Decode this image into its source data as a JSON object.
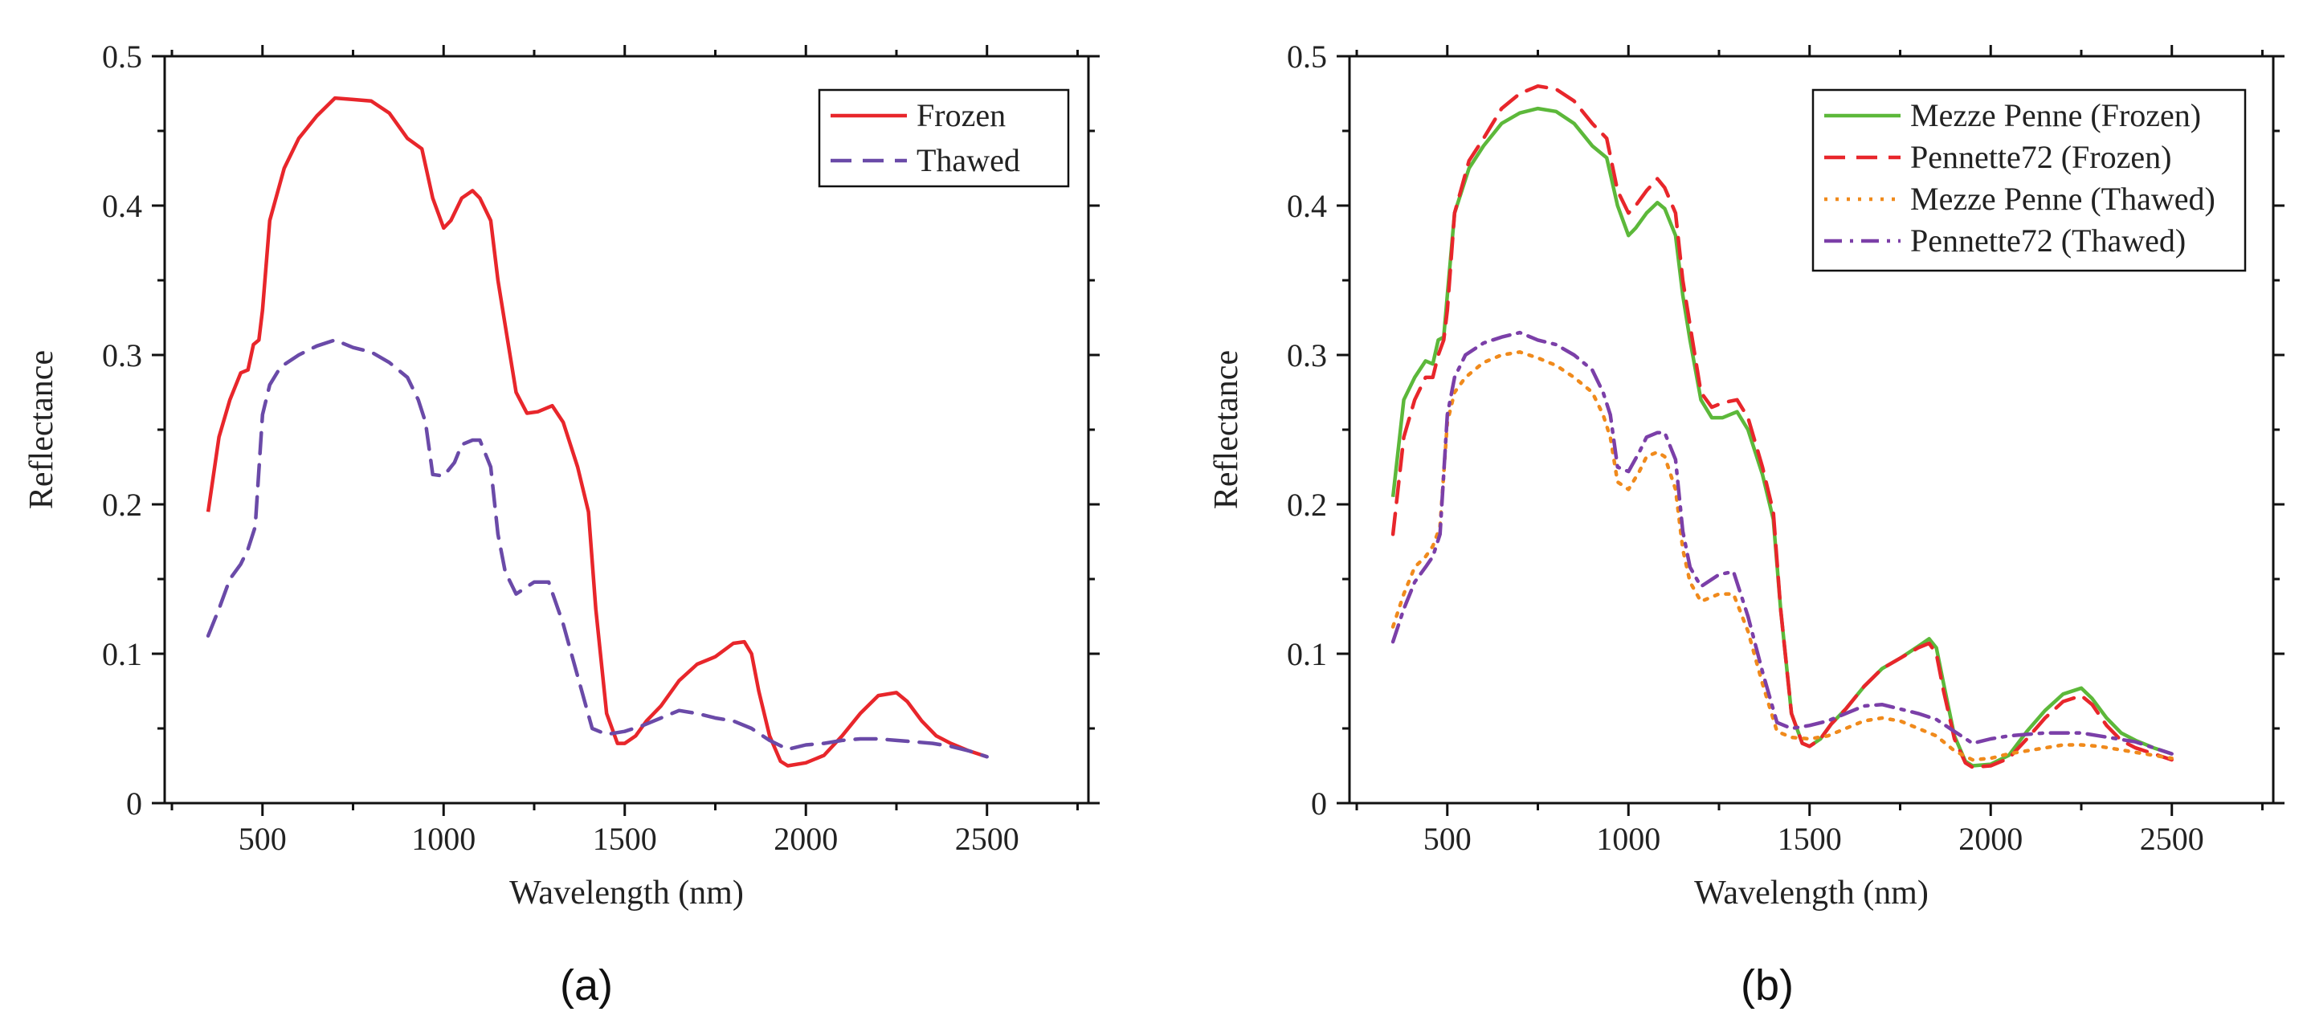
{
  "chart_data": [
    {
      "type": "line",
      "panel_label": "(a)",
      "title": "",
      "xlabel": "Wavelength (nm)",
      "ylabel": "Reflectance",
      "xlim": [
        230,
        2780
      ],
      "ylim": [
        0,
        0.5
      ],
      "xticks": [
        500,
        1000,
        1500,
        2000,
        2500
      ],
      "yticks": [
        0,
        0.1,
        0.2,
        0.3,
        0.4,
        0.5
      ],
      "ytick_labels": [
        "0",
        "0.1",
        "0.2",
        "0.3",
        "0.4",
        "0.5"
      ],
      "legend_position": "top-right",
      "series": [
        {
          "name": "Frozen",
          "color": "#e8262b",
          "dash": "solid",
          "x": [
            350,
            380,
            410,
            440,
            460,
            475,
            490,
            500,
            520,
            560,
            600,
            650,
            700,
            750,
            800,
            850,
            900,
            940,
            970,
            1000,
            1020,
            1050,
            1080,
            1100,
            1130,
            1150,
            1170,
            1200,
            1230,
            1260,
            1300,
            1330,
            1370,
            1400,
            1420,
            1450,
            1480,
            1500,
            1530,
            1560,
            1600,
            1650,
            1700,
            1750,
            1800,
            1830,
            1850,
            1870,
            1900,
            1930,
            1950,
            2000,
            2050,
            2100,
            2150,
            2200,
            2250,
            2280,
            2320,
            2360,
            2400,
            2450,
            2500
          ],
          "y": [
            0.195,
            0.245,
            0.27,
            0.288,
            0.29,
            0.307,
            0.31,
            0.33,
            0.39,
            0.425,
            0.445,
            0.46,
            0.472,
            0.471,
            0.47,
            0.462,
            0.445,
            0.438,
            0.405,
            0.385,
            0.39,
            0.405,
            0.41,
            0.405,
            0.39,
            0.35,
            0.32,
            0.275,
            0.261,
            0.262,
            0.266,
            0.255,
            0.225,
            0.195,
            0.13,
            0.06,
            0.04,
            0.04,
            0.045,
            0.055,
            0.065,
            0.082,
            0.093,
            0.098,
            0.107,
            0.108,
            0.1,
            0.075,
            0.045,
            0.028,
            0.025,
            0.027,
            0.032,
            0.045,
            0.06,
            0.072,
            0.074,
            0.068,
            0.055,
            0.045,
            0.04,
            0.035,
            0.031
          ]
        },
        {
          "name": "Thawed",
          "color": "#6a4aa8",
          "dash": "dashed",
          "x": [
            350,
            380,
            410,
            440,
            460,
            480,
            500,
            520,
            550,
            600,
            650,
            700,
            750,
            800,
            850,
            900,
            930,
            950,
            970,
            1000,
            1030,
            1050,
            1080,
            1100,
            1130,
            1150,
            1170,
            1200,
            1250,
            1290,
            1330,
            1370,
            1410,
            1450,
            1500,
            1550,
            1600,
            1650,
            1700,
            1750,
            1800,
            1850,
            1900,
            1950,
            2000,
            2050,
            2100,
            2150,
            2200,
            2250,
            2300,
            2350,
            2400,
            2450,
            2500
          ],
          "y": [
            0.112,
            0.13,
            0.15,
            0.16,
            0.17,
            0.185,
            0.26,
            0.28,
            0.292,
            0.3,
            0.306,
            0.31,
            0.305,
            0.302,
            0.295,
            0.285,
            0.27,
            0.255,
            0.22,
            0.219,
            0.228,
            0.24,
            0.243,
            0.243,
            0.225,
            0.18,
            0.155,
            0.14,
            0.148,
            0.148,
            0.12,
            0.085,
            0.05,
            0.046,
            0.048,
            0.052,
            0.057,
            0.062,
            0.06,
            0.057,
            0.055,
            0.05,
            0.042,
            0.036,
            0.039,
            0.04,
            0.042,
            0.043,
            0.043,
            0.042,
            0.041,
            0.04,
            0.038,
            0.035,
            0.031
          ]
        }
      ]
    },
    {
      "type": "line",
      "panel_label": "(b)",
      "title": "",
      "xlabel": "Wavelength (nm)",
      "ylabel": "Reflectance",
      "xlim": [
        230,
        2780
      ],
      "ylim": [
        0,
        0.5
      ],
      "xticks": [
        500,
        1000,
        1500,
        2000,
        2500
      ],
      "yticks": [
        0,
        0.1,
        0.2,
        0.3,
        0.4,
        0.5
      ],
      "ytick_labels": [
        "0",
        "0.1",
        "0.2",
        "0.3",
        "0.4",
        "0.5"
      ],
      "legend_position": "top-right",
      "series": [
        {
          "name": "Mezze Penne (Frozen)",
          "color": "#5cb83a",
          "dash": "solid",
          "x": [
            350,
            380,
            410,
            440,
            460,
            475,
            490,
            500,
            520,
            560,
            600,
            650,
            700,
            750,
            800,
            850,
            900,
            940,
            970,
            1000,
            1020,
            1050,
            1080,
            1100,
            1130,
            1150,
            1170,
            1200,
            1230,
            1260,
            1300,
            1330,
            1370,
            1400,
            1420,
            1450,
            1480,
            1500,
            1530,
            1560,
            1600,
            1650,
            1700,
            1750,
            1800,
            1830,
            1850,
            1870,
            1900,
            1930,
            1950,
            2000,
            2050,
            2100,
            2150,
            2200,
            2250,
            2280,
            2320,
            2360,
            2400,
            2450,
            2500
          ],
          "y": [
            0.205,
            0.27,
            0.285,
            0.296,
            0.294,
            0.31,
            0.312,
            0.34,
            0.395,
            0.425,
            0.44,
            0.455,
            0.462,
            0.465,
            0.463,
            0.455,
            0.44,
            0.432,
            0.4,
            0.38,
            0.385,
            0.395,
            0.402,
            0.398,
            0.38,
            0.34,
            0.31,
            0.27,
            0.258,
            0.258,
            0.262,
            0.25,
            0.22,
            0.19,
            0.13,
            0.06,
            0.04,
            0.038,
            0.043,
            0.053,
            0.063,
            0.078,
            0.09,
            0.097,
            0.105,
            0.11,
            0.104,
            0.08,
            0.045,
            0.028,
            0.025,
            0.026,
            0.032,
            0.048,
            0.062,
            0.073,
            0.077,
            0.07,
            0.057,
            0.047,
            0.042,
            0.037,
            0.033
          ]
        },
        {
          "name": "Pennette72 (Frozen)",
          "color": "#e8262b",
          "dash": "dashed",
          "x": [
            350,
            380,
            410,
            440,
            460,
            475,
            490,
            500,
            520,
            560,
            600,
            650,
            700,
            750,
            800,
            850,
            900,
            940,
            970,
            1000,
            1020,
            1050,
            1080,
            1100,
            1130,
            1150,
            1170,
            1200,
            1230,
            1260,
            1300,
            1330,
            1370,
            1400,
            1420,
            1450,
            1480,
            1500,
            1530,
            1560,
            1600,
            1650,
            1700,
            1750,
            1800,
            1830,
            1850,
            1870,
            1900,
            1930,
            1950,
            2000,
            2050,
            2100,
            2150,
            2200,
            2250,
            2280,
            2320,
            2360,
            2400,
            2450,
            2500
          ],
          "y": [
            0.18,
            0.245,
            0.27,
            0.285,
            0.285,
            0.3,
            0.31,
            0.33,
            0.395,
            0.43,
            0.445,
            0.465,
            0.475,
            0.48,
            0.478,
            0.47,
            0.455,
            0.445,
            0.41,
            0.395,
            0.4,
            0.41,
            0.418,
            0.412,
            0.395,
            0.35,
            0.32,
            0.275,
            0.265,
            0.268,
            0.27,
            0.258,
            0.225,
            0.195,
            0.13,
            0.06,
            0.04,
            0.038,
            0.043,
            0.053,
            0.063,
            0.078,
            0.09,
            0.097,
            0.104,
            0.107,
            0.1,
            0.075,
            0.043,
            0.027,
            0.024,
            0.025,
            0.03,
            0.043,
            0.057,
            0.068,
            0.072,
            0.066,
            0.052,
            0.042,
            0.037,
            0.033,
            0.029
          ]
        },
        {
          "name": "Mezze Penne (Thawed)",
          "color": "#f08a1c",
          "dash": "dotted",
          "x": [
            350,
            380,
            410,
            440,
            460,
            480,
            500,
            520,
            550,
            600,
            650,
            700,
            750,
            800,
            850,
            900,
            930,
            950,
            970,
            1000,
            1030,
            1050,
            1080,
            1100,
            1130,
            1150,
            1170,
            1200,
            1250,
            1290,
            1330,
            1370,
            1410,
            1450,
            1500,
            1550,
            1600,
            1650,
            1700,
            1750,
            1800,
            1850,
            1900,
            1950,
            2000,
            2050,
            2100,
            2150,
            2200,
            2250,
            2300,
            2350,
            2400,
            2450,
            2500
          ],
          "y": [
            0.118,
            0.14,
            0.158,
            0.165,
            0.172,
            0.185,
            0.255,
            0.275,
            0.285,
            0.295,
            0.3,
            0.302,
            0.298,
            0.293,
            0.285,
            0.275,
            0.26,
            0.245,
            0.215,
            0.21,
            0.222,
            0.232,
            0.235,
            0.232,
            0.21,
            0.17,
            0.148,
            0.135,
            0.14,
            0.14,
            0.115,
            0.08,
            0.048,
            0.044,
            0.043,
            0.045,
            0.05,
            0.055,
            0.057,
            0.055,
            0.05,
            0.045,
            0.035,
            0.029,
            0.03,
            0.033,
            0.035,
            0.037,
            0.039,
            0.039,
            0.038,
            0.036,
            0.034,
            0.032,
            0.03
          ]
        },
        {
          "name": "Pennette72 (Thawed)",
          "color": "#7b3fa8",
          "dash": "dashdot",
          "x": [
            350,
            380,
            410,
            440,
            460,
            480,
            500,
            520,
            550,
            600,
            650,
            700,
            750,
            800,
            850,
            900,
            930,
            950,
            970,
            1000,
            1030,
            1050,
            1080,
            1100,
            1130,
            1150,
            1170,
            1200,
            1250,
            1290,
            1330,
            1370,
            1410,
            1450,
            1500,
            1550,
            1600,
            1650,
            1700,
            1750,
            1800,
            1850,
            1900,
            1950,
            2000,
            2050,
            2100,
            2150,
            2200,
            2250,
            2300,
            2350,
            2400,
            2450,
            2500
          ],
          "y": [
            0.108,
            0.13,
            0.148,
            0.158,
            0.165,
            0.18,
            0.26,
            0.285,
            0.3,
            0.308,
            0.312,
            0.315,
            0.31,
            0.307,
            0.3,
            0.29,
            0.275,
            0.26,
            0.225,
            0.222,
            0.235,
            0.245,
            0.248,
            0.248,
            0.23,
            0.182,
            0.158,
            0.145,
            0.153,
            0.155,
            0.125,
            0.088,
            0.054,
            0.05,
            0.052,
            0.055,
            0.06,
            0.065,
            0.066,
            0.063,
            0.06,
            0.056,
            0.048,
            0.04,
            0.043,
            0.045,
            0.046,
            0.047,
            0.047,
            0.047,
            0.045,
            0.043,
            0.041,
            0.037,
            0.033
          ]
        }
      ]
    }
  ]
}
